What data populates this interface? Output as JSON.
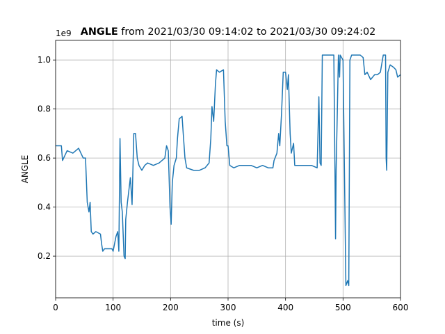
{
  "chart_data": {
    "type": "line",
    "title": {
      "bold": "ANGLE",
      "text": "from 2021/03/30 09:14:02 to 2021/03/30 09:24:02"
    },
    "x_label": "time (s)",
    "y_label": "ANGLE",
    "y_offset_label": "1e9",
    "xlim": [
      0,
      600
    ],
    "xticks": [
      0,
      100,
      200,
      300,
      400,
      500,
      600
    ],
    "ylim": [
      0.03,
      1.08
    ],
    "yticks": [
      0.2,
      0.4,
      0.6,
      0.8,
      {
        "value": 1,
        "label": "1.0"
      }
    ],
    "grid": true,
    "x": [
      0,
      10,
      12,
      20,
      30,
      40,
      48,
      52,
      55,
      58,
      60,
      62,
      65,
      70,
      78,
      80,
      82,
      85,
      90,
      98,
      100,
      105,
      108,
      110,
      112,
      114,
      116,
      119,
      121,
      122,
      125,
      128,
      130,
      133,
      136,
      139,
      142,
      145,
      150,
      155,
      160,
      170,
      180,
      190,
      193,
      196,
      199,
      201,
      203,
      206,
      210,
      212,
      215,
      220,
      222,
      225,
      228,
      240,
      250,
      260,
      267,
      270,
      272,
      275,
      278,
      280,
      285,
      292,
      295,
      298,
      300,
      303,
      310,
      320,
      330,
      340,
      350,
      360,
      370,
      378,
      380,
      385,
      388,
      390,
      393,
      396,
      400,
      403,
      405,
      408,
      410,
      414,
      416,
      425,
      435,
      445,
      455,
      458,
      460,
      462,
      464,
      470,
      480,
      484,
      486,
      487,
      488,
      490,
      492,
      494,
      495,
      500,
      503,
      505,
      508,
      510,
      512,
      515,
      525,
      530,
      535,
      538,
      542,
      548,
      555,
      560,
      565,
      570,
      574,
      575,
      576,
      578,
      582,
      588,
      592,
      595,
      600
    ],
    "series": [
      {
        "name": "ANGLE",
        "color": "#1f77b4",
        "values": [
          0.65,
          0.65,
          0.59,
          0.63,
          0.62,
          0.64,
          0.6,
          0.6,
          0.42,
          0.38,
          0.42,
          0.3,
          0.29,
          0.3,
          0.29,
          0.25,
          0.22,
          0.23,
          0.23,
          0.23,
          0.22,
          0.28,
          0.3,
          0.22,
          0.68,
          0.42,
          0.38,
          0.2,
          0.19,
          0.35,
          0.42,
          0.48,
          0.52,
          0.41,
          0.7,
          0.7,
          0.6,
          0.57,
          0.55,
          0.57,
          0.58,
          0.57,
          0.58,
          0.6,
          0.65,
          0.63,
          0.4,
          0.33,
          0.5,
          0.57,
          0.6,
          0.68,
          0.76,
          0.77,
          0.7,
          0.6,
          0.56,
          0.55,
          0.55,
          0.56,
          0.58,
          0.68,
          0.81,
          0.75,
          0.9,
          0.96,
          0.95,
          0.96,
          0.75,
          0.65,
          0.65,
          0.57,
          0.56,
          0.57,
          0.57,
          0.57,
          0.56,
          0.57,
          0.56,
          0.56,
          0.59,
          0.62,
          0.7,
          0.65,
          0.78,
          0.95,
          0.95,
          0.88,
          0.94,
          0.7,
          0.62,
          0.66,
          0.57,
          0.57,
          0.57,
          0.57,
          0.56,
          0.85,
          0.58,
          0.57,
          1.02,
          1.02,
          1.02,
          1.02,
          0.55,
          0.27,
          0.55,
          0.78,
          1.02,
          0.93,
          1.02,
          1.0,
          0.45,
          0.08,
          0.1,
          0.08,
          1.0,
          1.02,
          1.02,
          1.02,
          1.01,
          0.94,
          0.95,
          0.92,
          0.94,
          0.94,
          0.95,
          1.02,
          1.02,
          0.6,
          0.55,
          0.95,
          0.98,
          0.97,
          0.96,
          0.93,
          0.94
        ]
      }
    ]
  }
}
